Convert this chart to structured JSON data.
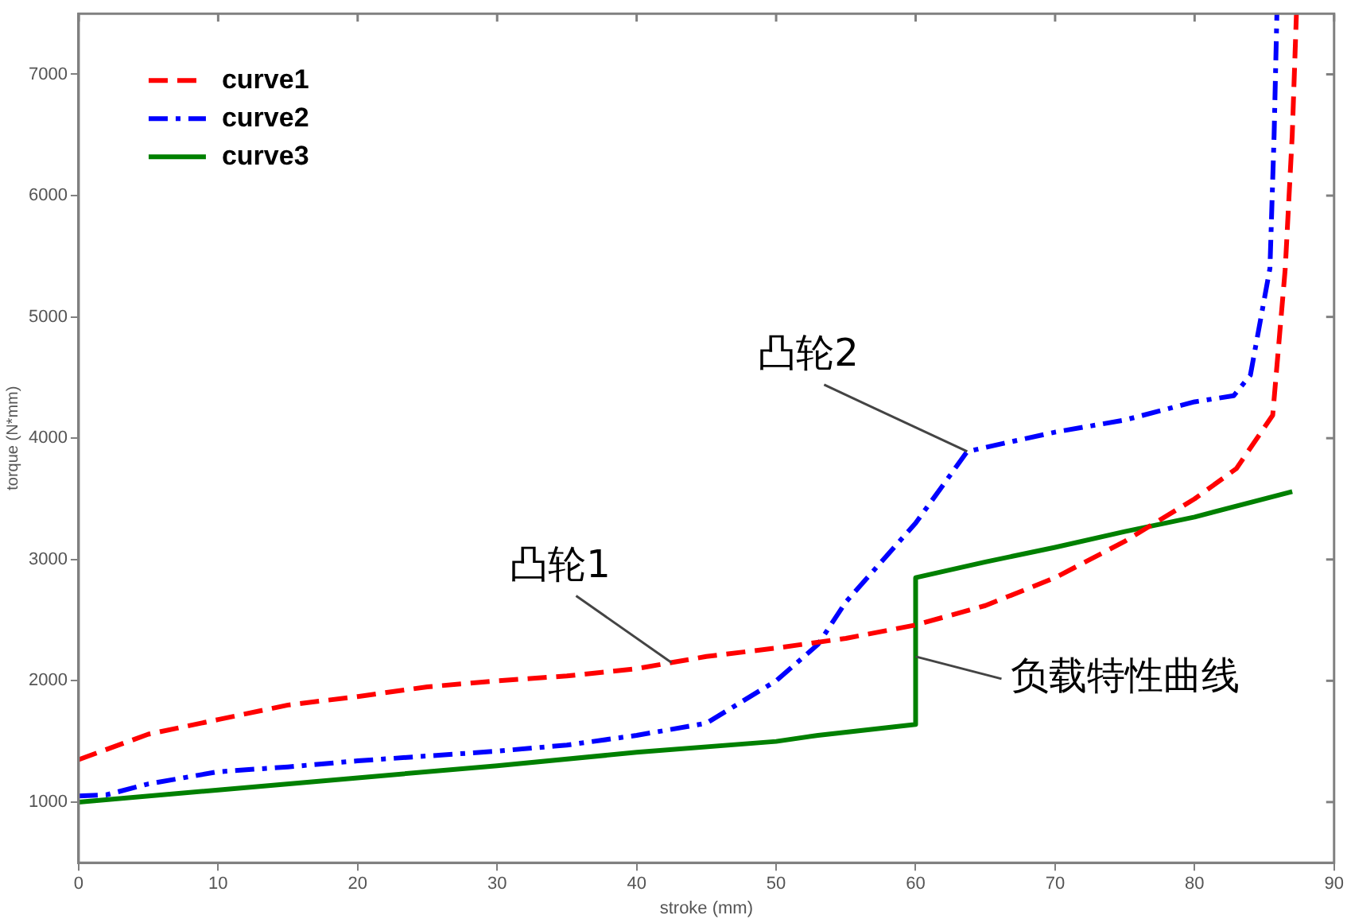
{
  "chart_data": {
    "type": "line",
    "xlabel": "stroke (mm)",
    "ylabel": "torque (N*mm)",
    "xlim": [
      0,
      90
    ],
    "xticks": [
      0,
      10,
      20,
      30,
      40,
      50,
      60,
      70,
      80,
      90
    ],
    "ylim": [
      500,
      7500
    ],
    "yticks": [
      1000,
      2000,
      3000,
      4000,
      5000,
      6000,
      7000
    ],
    "grid": false,
    "legend": "top left",
    "marker": "none",
    "series": [
      {
        "name": "curve1",
        "color": "#ff0000",
        "line_style": "dashed",
        "x": [
          0,
          5,
          10,
          15,
          20,
          25,
          30,
          35,
          40,
          45,
          50,
          55,
          60,
          65,
          70,
          75,
          80,
          83,
          85.6,
          86.5,
          87,
          87.3
        ],
        "values": [
          1350,
          1560,
          1680,
          1800,
          1870,
          1950,
          2000,
          2040,
          2100,
          2200,
          2270,
          2350,
          2460,
          2620,
          2850,
          3150,
          3500,
          3750,
          4190,
          5400,
          6500,
          7500
        ]
      },
      {
        "name": "curve2",
        "color": "#0000ff",
        "line_style": "dashdot",
        "x": [
          0,
          2,
          5,
          10,
          15,
          20,
          25,
          30,
          35,
          40,
          45,
          50,
          53,
          55,
          60,
          63.7,
          66,
          70,
          75,
          80,
          82.8,
          84,
          85.4,
          85.7,
          85.9
        ],
        "values": [
          1050,
          1060,
          1150,
          1250,
          1290,
          1340,
          1380,
          1420,
          1470,
          1550,
          1650,
          2000,
          2300,
          2650,
          3300,
          3890,
          3950,
          4050,
          4150,
          4300,
          4350,
          4520,
          5400,
          6500,
          7500
        ]
      },
      {
        "name": "curve3",
        "color": "#008000",
        "line_style": "solid",
        "x": [
          0,
          10,
          20,
          30,
          40,
          50,
          53,
          60,
          60,
          65,
          70,
          75,
          80,
          87
        ],
        "values": [
          1000,
          1100,
          1200,
          1300,
          1410,
          1500,
          1550,
          1640,
          2850,
          2980,
          3100,
          3230,
          3350,
          3560
        ]
      }
    ],
    "annotations": [
      {
        "text": "凸轮1",
        "x": 42.5,
        "y": 2150
      },
      {
        "text": "凸轮2",
        "x": 63.7,
        "y": 3890
      },
      {
        "text": "负载特性曲线",
        "x": 60,
        "y": 2200
      }
    ]
  }
}
